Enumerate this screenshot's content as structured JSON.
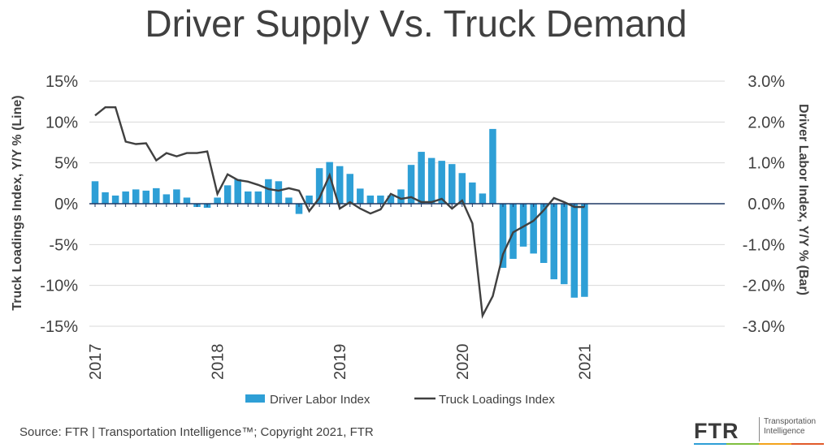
{
  "title": "Driver Supply Vs. Truck Demand",
  "source": "Source: FTR | Transportation Intelligence™; Copyright 2021, FTR",
  "logo": {
    "mark": "FTR",
    "line1": "Transportation",
    "line2": "Intelligence"
  },
  "chart_data": {
    "type": "bar+line",
    "x_label_years": [
      "2017",
      "2018",
      "2019",
      "2020",
      "2021"
    ],
    "left_axis": {
      "label": "Truck Loadings Index, Y/Y % (Line)",
      "range": [
        -15,
        15
      ],
      "ticks": [
        "15%",
        "10%",
        "5%",
        "0%",
        "-5%",
        "-10%",
        "-15%"
      ]
    },
    "right_axis": {
      "label": "Driver Labor Index, Y/Y % (Bar)",
      "range": [
        -3,
        3
      ],
      "ticks": [
        "3.0%",
        "2.0%",
        "1.0%",
        "0.0%",
        "-1.0%",
        "-2.0%",
        "-3.0%"
      ]
    },
    "months": [
      "2017-01",
      "2017-02",
      "2017-03",
      "2017-04",
      "2017-05",
      "2017-06",
      "2017-07",
      "2017-08",
      "2017-09",
      "2017-10",
      "2017-11",
      "2017-12",
      "2018-01",
      "2018-02",
      "2018-03",
      "2018-04",
      "2018-05",
      "2018-06",
      "2018-07",
      "2018-08",
      "2018-09",
      "2018-10",
      "2018-11",
      "2018-12",
      "2019-01",
      "2019-02",
      "2019-03",
      "2019-04",
      "2019-05",
      "2019-06",
      "2019-07",
      "2019-08",
      "2019-09",
      "2019-10",
      "2019-11",
      "2019-12",
      "2020-01",
      "2020-02",
      "2020-03",
      "2020-04",
      "2020-05",
      "2020-06",
      "2020-07",
      "2020-08",
      "2020-09",
      "2020-10",
      "2020-11",
      "2020-12",
      "2021-01"
    ],
    "series": [
      {
        "name": "Driver Labor Index",
        "kind": "bar",
        "axis": "right",
        "color": "#2e9fd6",
        "values": [
          0.55,
          0.28,
          0.2,
          0.3,
          0.35,
          0.32,
          0.38,
          0.23,
          0.35,
          0.15,
          -0.08,
          -0.1,
          0.15,
          0.45,
          0.6,
          0.3,
          0.3,
          0.6,
          0.55,
          0.15,
          -0.25,
          0.2,
          0.87,
          1.02,
          0.92,
          0.73,
          0.37,
          0.2,
          0.2,
          0.2,
          0.35,
          0.95,
          1.27,
          1.12,
          1.05,
          0.97,
          0.75,
          0.52,
          0.25,
          1.83,
          -1.57,
          -1.35,
          -1.05,
          -1.22,
          -1.45,
          -1.85,
          -1.97,
          -2.3,
          -2.28
        ]
      },
      {
        "name": "Truck Loadings Index",
        "kind": "line",
        "axis": "left",
        "color": "#404040",
        "values": [
          10.8,
          11.8,
          11.8,
          7.6,
          7.3,
          7.4,
          5.3,
          6.2,
          5.8,
          6.2,
          6.2,
          6.4,
          1.2,
          3.6,
          2.9,
          2.7,
          2.3,
          1.8,
          1.6,
          1.9,
          1.6,
          -0.9,
          0.7,
          3.5,
          -0.6,
          0.2,
          -0.6,
          -1.2,
          -0.7,
          1.2,
          0.6,
          0.8,
          0.2,
          0.2,
          0.6,
          -0.6,
          0.4,
          -2.4,
          -13.7,
          -11.3,
          -6.2,
          -3.5,
          -2.8,
          -2.1,
          -0.8,
          0.7,
          0.2,
          -0.4,
          -0.4
        ]
      }
    ],
    "legend_position": "bottom"
  }
}
